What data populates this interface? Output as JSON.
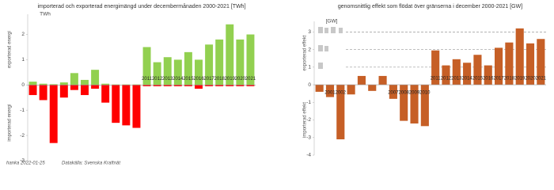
{
  "chart_data": [
    {
      "type": "bar",
      "title": "importerad och exporterad energimängd under decembermånaden 2000-2021 [TWh]",
      "unit": "TWh",
      "ylabel_top": "exporterad energi",
      "ylabel_bottom": "importerad energi",
      "categories": [
        null,
        null,
        null,
        null,
        null,
        null,
        null,
        null,
        null,
        null,
        null,
        "2011",
        "2012",
        "2013",
        "2014",
        "2015",
        "2016",
        "2017",
        "2018",
        "2019",
        "2020",
        "2021"
      ],
      "series": [
        {
          "color": "#92d050",
          "values": [
            0.13,
            0.05,
            0.03,
            0.1,
            0.47,
            0.2,
            0.6,
            0.05,
            0.02,
            0.02,
            0.02,
            1.5,
            0.9,
            1.1,
            1.0,
            1.3,
            1.0,
            1.6,
            1.8,
            2.4,
            1.8,
            2.0
          ]
        },
        {
          "color": "#ff0000",
          "values": [
            -0.4,
            -0.6,
            -2.3,
            -0.5,
            -0.2,
            -0.4,
            -0.15,
            -0.7,
            -1.5,
            -1.6,
            -1.7,
            -0.05,
            -0.05,
            -0.05,
            -0.05,
            -0.05,
            -0.15,
            -0.05,
            -0.05,
            -0.05,
            -0.05,
            -0.05
          ]
        }
      ],
      "ylim": [
        -3,
        2.8
      ],
      "yticks": [
        -3,
        -2,
        -1,
        0,
        1,
        2
      ],
      "grid": false
    },
    {
      "type": "bar",
      "title": "genomsnittlig effekt som flödat över gränserna i december 2000-2021 [GW]",
      "unit": "[GW]",
      "ylabel_top": "exporterad effekt",
      "ylabel_bottom": "importerad effekt",
      "categories": [
        null,
        "2001",
        "2002",
        null,
        null,
        null,
        null,
        "2007",
        "2008",
        "2009",
        "2010",
        "2011",
        "2012",
        "2013",
        "2014",
        "2015",
        "2016",
        "2017",
        "2018",
        "2019",
        "2020",
        "2021"
      ],
      "series": [
        {
          "color": "#c65f26",
          "values": [
            -0.4,
            -0.7,
            -3.1,
            -0.55,
            0.5,
            -0.35,
            0.5,
            -0.8,
            -2.05,
            -2.2,
            -2.35,
            1.95,
            1.1,
            1.45,
            1.25,
            1.7,
            1.1,
            2.1,
            2.4,
            3.2,
            2.35,
            2.6
          ]
        }
      ],
      "ylim": [
        -4,
        3.6
      ],
      "yticks": [
        -4,
        -3,
        -2,
        -1,
        0,
        1,
        2,
        3
      ],
      "grid": false,
      "reference_lines": [
        3,
        2,
        1
      ]
    }
  ],
  "footer": {
    "author": "hanka 2022-01-25",
    "source": "Datakälla: Svenska Kraftnät"
  }
}
